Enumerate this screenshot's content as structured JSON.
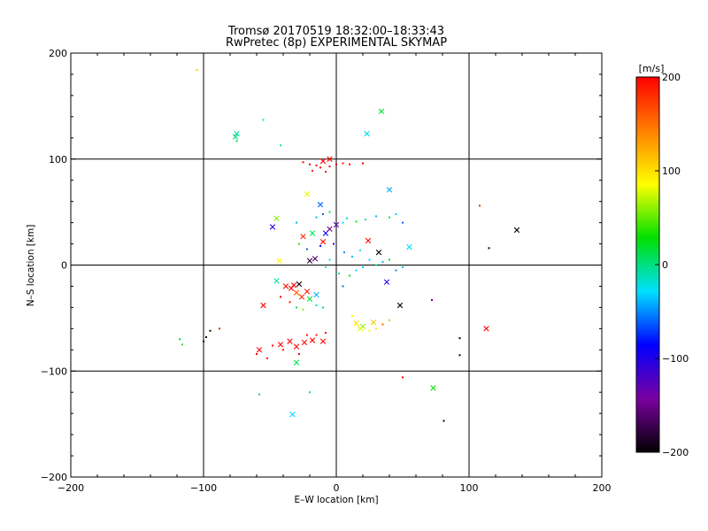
{
  "chart_data": {
    "type": "scatter",
    "title": "Tromsø 20170519 18:32:00–18:33:43",
    "subtitle": "RwPretec (8p) EXPERIMENTAL SKYMAP",
    "xlabel": "E–W location [km]",
    "ylabel": "N–S location [km]",
    "xlim": [
      -200,
      200
    ],
    "ylim": [
      -200,
      200
    ],
    "x_ticks": [
      -200,
      -100,
      0,
      100,
      200
    ],
    "y_ticks": [
      -200,
      -100,
      0,
      100,
      200
    ],
    "x_tick_labels": [
      "−200",
      "−100",
      "0",
      "100",
      "200"
    ],
    "y_tick_labels": [
      "−200",
      "−100",
      "0",
      "100",
      "200"
    ],
    "grid": true,
    "colorbar": {
      "label": "[m/s]",
      "range": [
        -200,
        200
      ],
      "ticks": [
        200,
        100,
        0,
        -100,
        -200
      ],
      "tick_labels": [
        "200",
        "100",
        "0",
        "−100",
        "−200"
      ],
      "colors": [
        "#000000",
        "#7a00a0",
        "#0000ff",
        "#00e0ff",
        "#00e000",
        "#ffff00",
        "#ff7f00",
        "#ff0000"
      ]
    },
    "series": [
      {
        "marker": "x",
        "points": [
          [
            -75,
            124,
            -10
          ],
          [
            -76,
            121,
            5
          ],
          [
            34,
            145,
            15
          ],
          [
            23,
            124,
            -30
          ],
          [
            -45,
            44,
            60
          ],
          [
            -48,
            36,
            -110
          ],
          [
            -22,
            67,
            80
          ],
          [
            40,
            71,
            -40
          ],
          [
            -12,
            57,
            -60
          ],
          [
            -18,
            30,
            10
          ],
          [
            -25,
            27,
            180
          ],
          [
            -10,
            22,
            200
          ],
          [
            -8,
            30,
            -90
          ],
          [
            0,
            38,
            -130
          ],
          [
            -5,
            34,
            -150
          ],
          [
            24,
            23,
            200
          ],
          [
            32,
            12,
            -200
          ],
          [
            55,
            17,
            -30
          ],
          [
            -16,
            6,
            -160
          ],
          [
            -20,
            4,
            -180
          ],
          [
            -43,
            4,
            90
          ],
          [
            -45,
            -15,
            -10
          ],
          [
            -38,
            -20,
            200
          ],
          [
            -34,
            -22,
            195
          ],
          [
            -28,
            -18,
            -200
          ],
          [
            -22,
            -25,
            190
          ],
          [
            -30,
            -26,
            160
          ],
          [
            -26,
            -30,
            180
          ],
          [
            -20,
            -32,
            20
          ],
          [
            -15,
            -28,
            -40
          ],
          [
            -32,
            -19,
            200
          ],
          [
            -55,
            -38,
            200
          ],
          [
            -58,
            -80,
            200
          ],
          [
            -30,
            -77,
            200
          ],
          [
            -24,
            -73,
            195
          ],
          [
            -18,
            -71,
            200
          ],
          [
            -35,
            -72,
            200
          ],
          [
            -42,
            -75,
            200
          ],
          [
            -10,
            -72,
            200
          ],
          [
            15,
            -55,
            100
          ],
          [
            20,
            -58,
            60
          ],
          [
            18,
            -60,
            80
          ],
          [
            28,
            -54,
            110
          ],
          [
            38,
            -16,
            -110
          ],
          [
            48,
            -38,
            -200
          ],
          [
            113,
            -60,
            200
          ],
          [
            136,
            33,
            -200
          ],
          [
            -30,
            -92,
            10
          ],
          [
            -33,
            -141,
            -30
          ],
          [
            73,
            -116,
            30
          ],
          [
            -10,
            98,
            200
          ],
          [
            -5,
            100,
            195
          ]
        ]
      },
      {
        "marker": "dot",
        "points": [
          [
            -105,
            184,
            110
          ],
          [
            -55,
            137,
            -20
          ],
          [
            -42,
            113,
            0
          ],
          [
            -75,
            117,
            10
          ],
          [
            -118,
            -70,
            20
          ],
          [
            -116,
            -75,
            40
          ],
          [
            -98,
            -68,
            -200
          ],
          [
            -95,
            -62,
            -200
          ],
          [
            -88,
            -60,
            190
          ],
          [
            -58,
            -122,
            0
          ],
          [
            -20,
            -120,
            0
          ],
          [
            50,
            -106,
            200
          ],
          [
            81,
            -147,
            -200
          ],
          [
            93,
            -69,
            -200
          ],
          [
            93,
            -85,
            -200
          ],
          [
            115,
            16,
            -200
          ],
          [
            108,
            56,
            180
          ],
          [
            -25,
            97,
            200
          ],
          [
            -20,
            95,
            200
          ],
          [
            -15,
            94,
            195
          ],
          [
            -12,
            92,
            200
          ],
          [
            -5,
            93,
            200
          ],
          [
            0,
            95,
            200
          ],
          [
            5,
            96,
            190
          ],
          [
            10,
            95,
            200
          ],
          [
            20,
            96,
            200
          ],
          [
            -18,
            89,
            200
          ],
          [
            -8,
            88,
            195
          ],
          [
            -15,
            45,
            -40
          ],
          [
            -10,
            48,
            -60
          ],
          [
            -5,
            50,
            10
          ],
          [
            5,
            40,
            -30
          ],
          [
            8,
            44,
            -20
          ],
          [
            15,
            41,
            30
          ],
          [
            22,
            43,
            -10
          ],
          [
            30,
            46,
            -40
          ],
          [
            40,
            45,
            20
          ],
          [
            45,
            48,
            -30
          ],
          [
            50,
            40,
            -60
          ],
          [
            -30,
            40,
            -40
          ],
          [
            -28,
            20,
            40
          ],
          [
            -22,
            15,
            -60
          ],
          [
            -12,
            18,
            -80
          ],
          [
            -2,
            20,
            -110
          ],
          [
            6,
            12,
            -50
          ],
          [
            12,
            8,
            -40
          ],
          [
            18,
            14,
            -20
          ],
          [
            25,
            5,
            -30
          ],
          [
            30,
            0,
            -10
          ],
          [
            35,
            3,
            -40
          ],
          [
            40,
            5,
            20
          ],
          [
            45,
            -5,
            -50
          ],
          [
            50,
            -2,
            -40
          ],
          [
            -5,
            5,
            -30
          ],
          [
            -8,
            -2,
            -20
          ],
          [
            2,
            -8,
            -10
          ],
          [
            10,
            -10,
            20
          ],
          [
            15,
            -5,
            -30
          ],
          [
            20,
            -2,
            -40
          ],
          [
            5,
            -20,
            -60
          ],
          [
            -42,
            -30,
            200
          ],
          [
            -35,
            -35,
            190
          ],
          [
            -30,
            -40,
            10
          ],
          [
            -25,
            -42,
            60
          ],
          [
            -15,
            -38,
            -10
          ],
          [
            -10,
            -40,
            0
          ],
          [
            -60,
            -84,
            200
          ],
          [
            -52,
            -88,
            200
          ],
          [
            -48,
            -76,
            200
          ],
          [
            -40,
            -80,
            195
          ],
          [
            -28,
            -84,
            200
          ],
          [
            -22,
            -66,
            200
          ],
          [
            -15,
            -66,
            190
          ],
          [
            -8,
            -64,
            200
          ],
          [
            12,
            -48,
            90
          ],
          [
            25,
            -62,
            80
          ],
          [
            30,
            -60,
            100
          ],
          [
            35,
            -56,
            150
          ],
          [
            40,
            -52,
            60
          ],
          [
            -100,
            -72,
            -200
          ],
          [
            72,
            -33,
            -150
          ]
        ]
      }
    ]
  }
}
